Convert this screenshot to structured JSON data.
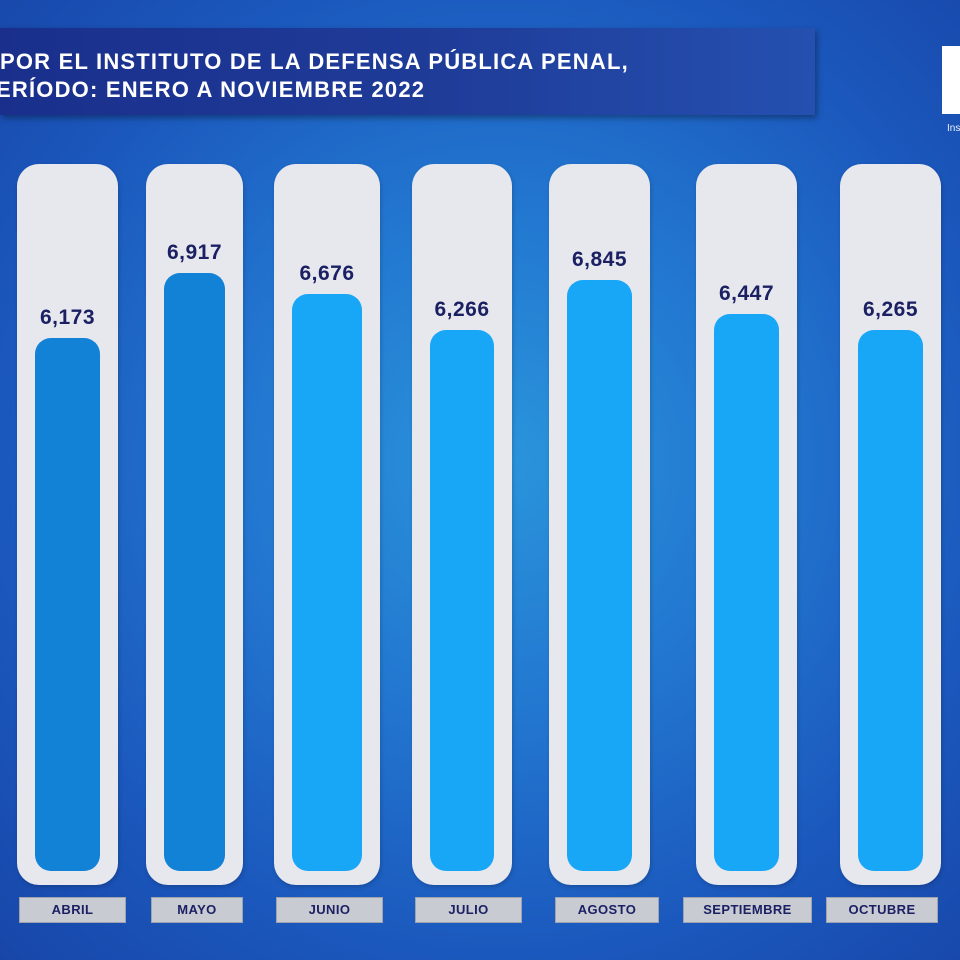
{
  "header": {
    "title_line1": "POR EL INSTITUTO DE LA DEFENSA PÚBLICA PENAL,",
    "title_line2": "ERÍODO:  ENERO A NOVIEMBRE  2022",
    "logo_text": "Ins"
  },
  "colors": {
    "background": "#2275cf",
    "banner": "#1f3c99",
    "pill": "#e7e8ee",
    "bar_dark": "#1282d6",
    "bar_light": "#18a6f7",
    "value_text": "#1b2063",
    "label_box": "#c9cbd3"
  },
  "chart_data": {
    "type": "bar",
    "title": "POR EL INSTITUTO DE LA DEFENSA PÚBLICA PENAL, ERÍODO:  ENERO A NOVIEMBRE  2022",
    "categories": [
      "ABRIL",
      "MAYO",
      "JUNIO",
      "JULIO",
      "AGOSTO",
      "SEPTIEMBRE",
      "OCTUBRE"
    ],
    "values": [
      6173,
      6917,
      6676,
      6266,
      6845,
      6447,
      6265
    ],
    "value_labels": [
      "6,173",
      "6,917",
      "6,676",
      "6,266",
      "6,845",
      "6,447",
      "6,265"
    ],
    "bar_colors": [
      "#1282d6",
      "#1282d6",
      "#18a6f7",
      "#18a6f7",
      "#18a6f7",
      "#18a6f7",
      "#18a6f7"
    ],
    "ylim": [
      0,
      8100
    ],
    "grid": false,
    "legend": "none"
  }
}
